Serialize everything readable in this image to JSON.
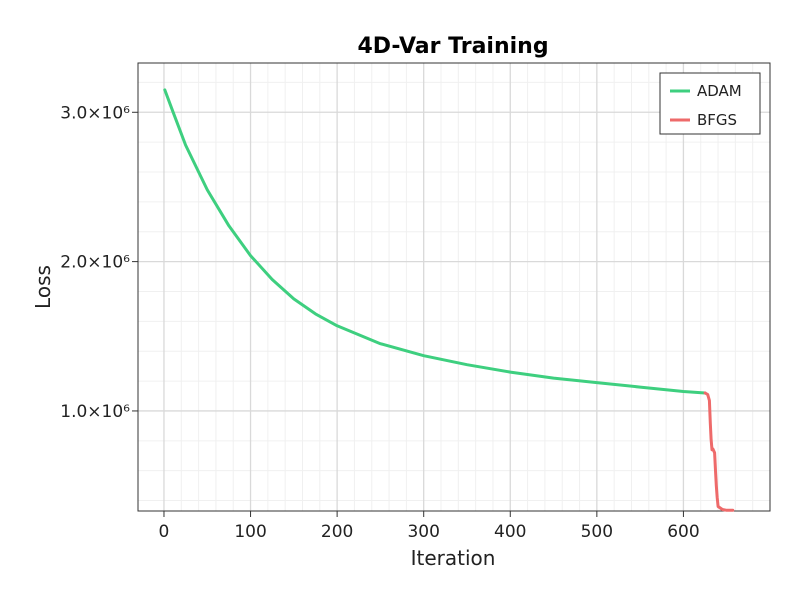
{
  "chart_data": {
    "type": "line",
    "title": "4D-Var Training",
    "xlabel": "Iteration",
    "ylabel": "Loss",
    "xlim": [
      -30,
      700
    ],
    "ylim": [
      330000,
      3330000
    ],
    "xticks": [
      0,
      100,
      200,
      300,
      400,
      500,
      600
    ],
    "yticks": [
      1000000,
      2000000,
      3000000
    ],
    "ytick_labels": [
      "1.0×10⁶",
      "2.0×10⁶",
      "3.0×10⁶"
    ],
    "grid": true,
    "legend": "top-right",
    "series": [
      {
        "name": "ADAM",
        "color": "#3ecf7f",
        "x": [
          1,
          10,
          25,
          50,
          75,
          100,
          125,
          150,
          175,
          200,
          250,
          300,
          350,
          400,
          450,
          500,
          550,
          600,
          625
        ],
        "y": [
          3150000,
          3010000,
          2780000,
          2480000,
          2240000,
          2040000,
          1880000,
          1750000,
          1650000,
          1570000,
          1450000,
          1370000,
          1310000,
          1260000,
          1220000,
          1190000,
          1160000,
          1130000,
          1120000
        ]
      },
      {
        "name": "BFGS",
        "color": "#ee6a6a",
        "x": [
          625,
          628,
          630,
          631,
          632,
          633,
          634,
          636,
          637,
          638,
          639,
          640,
          645,
          650,
          657
        ],
        "y": [
          1120000,
          1110000,
          1070000,
          920000,
          810000,
          740000,
          745000,
          720000,
          600000,
          500000,
          420000,
          360000,
          340000,
          335000,
          335000
        ]
      }
    ]
  }
}
